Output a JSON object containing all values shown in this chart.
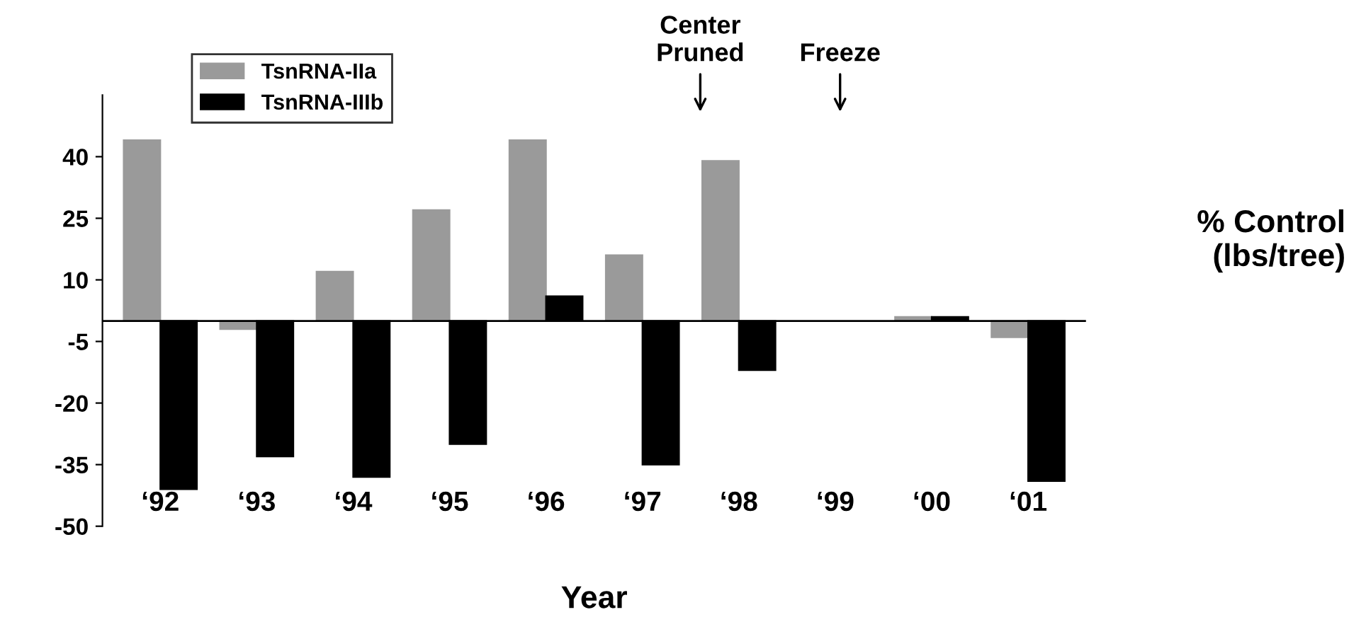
{
  "chart_data": {
    "type": "bar",
    "xlabel": "Year",
    "ylabel": "% Control\n(lbs/tree)",
    "categories": [
      "‘92",
      "‘93",
      "‘94",
      "‘95",
      "‘96",
      "‘97",
      "‘98",
      "‘99",
      "‘00",
      "‘01"
    ],
    "series": [
      {
        "name": "TsnRNA-IIa",
        "color": "#9a9a9a",
        "values": [
          44,
          -2,
          12,
          27,
          44,
          16,
          39,
          null,
          1,
          -4
        ]
      },
      {
        "name": "TsnRNA-IIIb",
        "color": "#000000",
        "values": [
          -41,
          -33,
          -38,
          -30,
          6,
          -35,
          -12,
          null,
          1,
          -39
        ]
      }
    ],
    "ylim": [
      -50,
      55
    ],
    "yticks": [
      -50,
      -35,
      -20,
      -5,
      10,
      25,
      40
    ],
    "annotations": [
      "Center\nPruned",
      "Freeze"
    ],
    "legend": "top left",
    "grid": false
  }
}
